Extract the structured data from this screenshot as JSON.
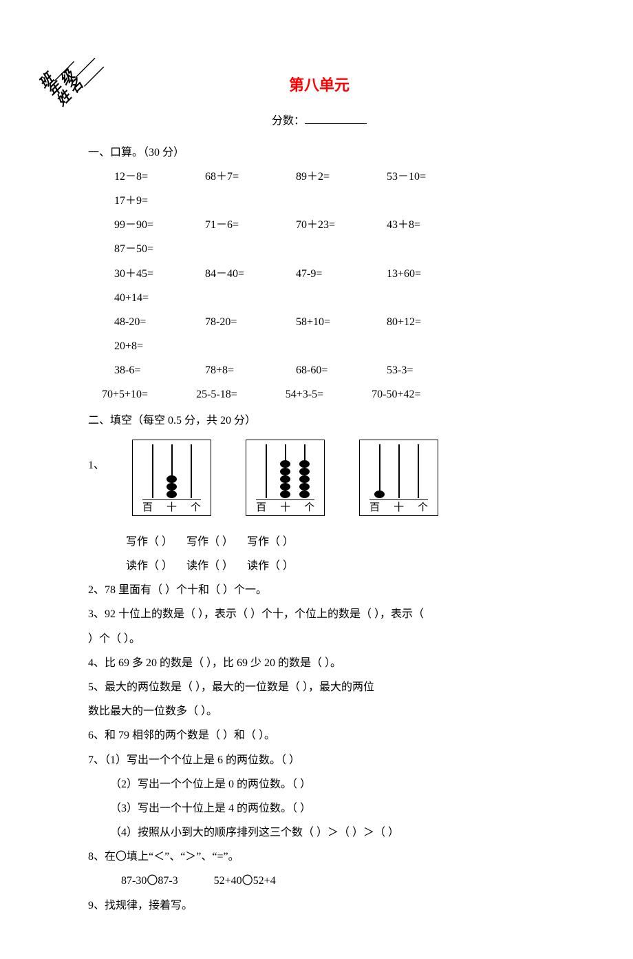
{
  "header": {
    "diag_top": "班",
    "diag_mid": "年 级",
    "diag_bot": "姓 名",
    "title": "第八单元",
    "score_label": "分数："
  },
  "sec1": {
    "heading": "一、口算。（30 分）",
    "rows": [
      [
        "12－8=",
        "68＋7=",
        "89＋2=",
        "53－10=",
        "17＋9="
      ],
      [
        "99－90=",
        "71－6=",
        "70＋23=",
        "43＋8=",
        "87－50="
      ],
      [
        "30＋45=",
        "84－40=",
        "47-9=",
        "13+60=",
        "40+14="
      ],
      [
        "48-20=",
        "78-20=",
        "58+10=",
        "80+12=",
        "20+8="
      ],
      [
        "38-6=",
        "78+8=",
        "68-60=",
        "53-3="
      ]
    ],
    "last_row": [
      "70+5+10=",
      "25-5-18=",
      "54+3-5=",
      "70-50+42="
    ]
  },
  "sec2": {
    "heading": "二、填空（每空 0.5 分，共 20 分）",
    "abacus": {
      "q_num": "1、",
      "places": [
        "百",
        "十",
        "个"
      ],
      "sets": [
        {
          "beads": [
            0,
            3,
            0
          ]
        },
        {
          "beads": [
            0,
            5,
            5
          ]
        },
        {
          "beads": [
            1,
            0,
            0
          ]
        }
      ],
      "write_label": "写作（        ）",
      "read_label": "读作（        ）"
    },
    "q2": "2、78 里面有（     ）个十和（     ）个一。",
    "q3a": "3、92 十位上的数是（        ），表示（     ）个十，个位上的数是（        ），表示（   ",
    "q3b": "）个（     ）。",
    "q4": "4、比 69 多 20 的数是（     ），比 69 少 20 的数是（     ）。",
    "q5a": "5、最大的两位数是（   ），最大的一位数是（   ），最大的两位",
    "q5b": "数比最大的一位数多（     ）。",
    "q6": "6、和 79 相邻的两个数是（     ）和（     ）。",
    "q7": "7、（1）写出一个个位上是 6 的两位数。（     ）",
    "q7_2": "（2）写出一个个位上是 0 的两位数。（     ）",
    "q7_3": "（3）写出一个十位上是 4 的两位数。（     ）",
    "q7_4": "（4）按照从小到大的顺序排列这三个数（     ）＞（      ）＞（      ）",
    "q8": "8、在〇填上“＜”、“＞”、“=”。",
    "q8_line": "87-30〇87-3             52+40〇52+4",
    "q9": "9、找规律，接着写。"
  }
}
